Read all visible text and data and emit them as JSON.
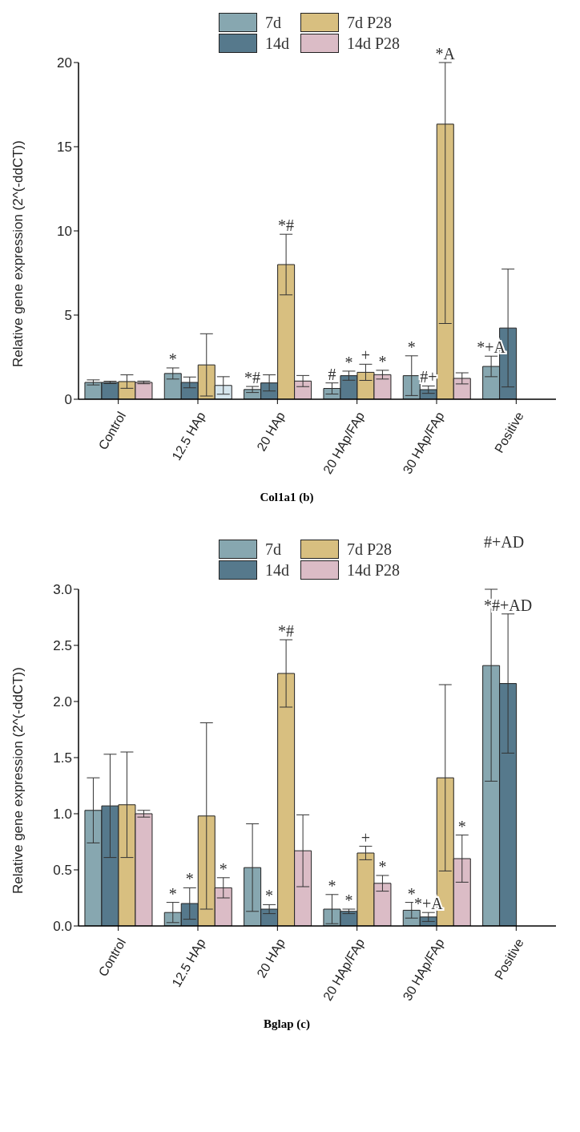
{
  "chart_data": [
    {
      "type": "bar",
      "title": "Col1a1 (b)",
      "ylabel": "Relative gene expression (2^(-ddCT))",
      "categories": [
        "Control",
        "12.5 HAp",
        "20 HAp",
        "20 HAp/FAp",
        "30 HAp/FAp",
        "Positive"
      ],
      "series": [
        {
          "name": "7d",
          "color": "#87a7b0",
          "values": [
            1.0,
            1.53,
            0.58,
            0.64,
            1.4,
            1.95
          ],
          "errors": [
            0.15,
            0.33,
            0.18,
            0.33,
            1.18,
            0.61
          ]
        },
        {
          "name": "14d",
          "color": "#56798c",
          "values": [
            1.0,
            1.0,
            0.97,
            1.4,
            0.57,
            4.23
          ],
          "errors": [
            0.07,
            0.32,
            0.48,
            0.27,
            0.22,
            3.5
          ]
        },
        {
          "name": "7d P28",
          "color": "#d8bf80",
          "values": [
            1.05,
            2.04,
            8.0,
            1.6,
            16.34,
            null
          ],
          "errors": [
            0.4,
            1.85,
            1.8,
            0.48,
            [
              4.5,
              20
            ],
            null
          ]
        },
        {
          "name": "14d P28",
          "color": "#dbbcc6",
          "colors": [
            "#dbbcc6",
            "#d6e6ee",
            "#dbbcc6",
            "#dbbcc6",
            "#dbbcc6",
            "#dbbcc6"
          ],
          "values": [
            1.0,
            0.82,
            1.08,
            1.46,
            1.24,
            null
          ],
          "errors": [
            0.08,
            0.52,
            0.33,
            0.26,
            0.33,
            null
          ]
        }
      ],
      "ylim": [
        0,
        20
      ],
      "yticks": [
        0,
        5,
        10,
        15,
        20
      ],
      "legend": "top",
      "annotations": [
        {
          "text": "*",
          "x": "12.5 HAp",
          "y": 1.86
        },
        {
          "text": "*#",
          "x": "20 HAp",
          "y": 0.76
        },
        {
          "text": "*#",
          "x": "20 HAp",
          "y": 9.8
        },
        {
          "text": "#",
          "x": "20 HAp/FAp",
          "y": 0.97
        },
        {
          "text": "*",
          "x": "20 HAp/FAp",
          "y": 1.67
        },
        {
          "text": "+",
          "x": "20 HAp/FAp",
          "y": 2.08
        },
        {
          "text": "*",
          "x": "20 HAp/FAp",
          "y": 1.72
        },
        {
          "text": "*",
          "x": "30 HAp/FAp",
          "y": 2.58
        },
        {
          "text": "#+",
          "x": "30 HAp/FAp",
          "y": 0.79
        },
        {
          "text": "*A",
          "x": "30 HAp/FAp",
          "y": 20
        },
        {
          "text": "*+A",
          "x": "Positive",
          "y": 2.56
        }
      ]
    },
    {
      "type": "bar",
      "title": "Bglap (c)",
      "ylabel": "Relative gene expression (2^(-ddCT))",
      "categories": [
        "Control",
        "12.5 HAp",
        "20 HAp",
        "20 HAp/FAp",
        "30 HAp/FAp",
        "Positive"
      ],
      "series": [
        {
          "name": "7d",
          "color": "#87a7b0",
          "values": [
            1.03,
            0.12,
            0.52,
            0.15,
            0.14,
            2.32
          ],
          "errors": [
            0.29,
            0.09,
            0.39,
            0.13,
            0.07,
            [
              1.29,
              3.0
            ]
          ]
        },
        {
          "name": "14d",
          "color": "#56798c",
          "values": [
            1.07,
            0.2,
            0.15,
            0.13,
            0.08,
            2.16
          ],
          "errors": [
            0.46,
            0.14,
            0.04,
            0.02,
            0.04,
            0.62
          ]
        },
        {
          "name": "7d P28",
          "color": "#d8bf80",
          "values": [
            1.08,
            0.98,
            2.25,
            0.65,
            1.32,
            null
          ],
          "errors": [
            0.47,
            0.83,
            0.3,
            0.06,
            0.83,
            null
          ]
        },
        {
          "name": "14d P28",
          "color": "#dbbcc6",
          "values": [
            1.0,
            0.34,
            0.67,
            0.38,
            0.6,
            null
          ],
          "errors": [
            0.03,
            0.09,
            0.32,
            0.07,
            0.21,
            null
          ]
        }
      ],
      "ylim": [
        0,
        3.0
      ],
      "yticks": [
        {
          "value": 0,
          "label": "0.0"
        },
        0.5,
        {
          "value": 1,
          "label": "1.0"
        },
        1.5,
        {
          "value": 2,
          "label": "2.0"
        },
        2.5,
        {
          "value": 3,
          "label": "3.0"
        }
      ],
      "legend": "top",
      "annotations": [
        {
          "text": "*",
          "x": "12.5 HAp",
          "y": 0.21
        },
        {
          "text": "*",
          "x": "12.5 HAp",
          "y": 0.34
        },
        {
          "text": "*",
          "x": "12.5 HAp",
          "y": 0.43
        },
        {
          "text": "*",
          "x": "20 HAp",
          "y": 0.19
        },
        {
          "text": "*#",
          "x": "20 HAp",
          "y": 2.55
        },
        {
          "text": "*",
          "x": "20 HAp/FAp",
          "y": 0.28
        },
        {
          "text": "*",
          "x": "20 HAp/FAp",
          "y": 0.15
        },
        {
          "text": "+",
          "x": "20 HAp/FAp",
          "y": 0.71
        },
        {
          "text": "*",
          "x": "20 HAp/FAp",
          "y": 0.45
        },
        {
          "text": "*",
          "x": "30 HAp/FAp",
          "y": 0.21
        },
        {
          "text": "*+A",
          "x": "30 HAp/FAp",
          "y": 0.12
        },
        {
          "text": "*",
          "x": "30 HAp/FAp",
          "y": 0.81
        },
        "#+AD",
        {
          "text": "*#+AD",
          "x": "Positive",
          "y": 2.78
        }
      ]
    }
  ]
}
